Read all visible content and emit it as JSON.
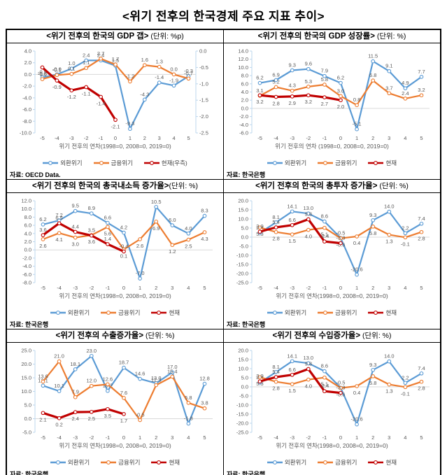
{
  "page_title": "<위기 전후의 한국경제 주요 지표 추이>",
  "colors": {
    "fx_crisis": "#5b9bd5",
    "fin_crisis": "#ed7d31",
    "current": "#c00000",
    "axis": "#bdd7ee",
    "zero_line": "#d9d9d9",
    "label": "#595959"
  },
  "chart_data": [
    {
      "type": "line",
      "title": "<위기 전후의 한국의 GDP 갭>",
      "unit": " (단위: %p)",
      "xlabel": "위기 전후의 연차(1998=0, 2008=0, 2019=0)",
      "source": "자료: OECD Data.",
      "x": [
        "-5",
        "-4",
        "-3",
        "-2",
        "-1",
        "0",
        "1",
        "2",
        "3",
        "4",
        "5"
      ],
      "ylim": [
        -10,
        4
      ],
      "ystep": 2,
      "y2lim": [
        -2.5,
        0
      ],
      "y2step": 0.5,
      "series": [
        {
          "name": "외환위기",
          "color": "#5b9bd5",
          "axis": "left",
          "label_pos": "above",
          "values": [
            -0.5,
            -0.0,
            1.0,
            2.4,
            2.4,
            1.5,
            -9.3,
            -4.3,
            -1.4,
            -1.9,
            -0.3
          ],
          "labels": [
            "-0.5",
            "-0.0",
            "1.0",
            "2.4",
            "2.4",
            "1.5",
            "-9.3",
            "-4.3",
            "-1.4",
            "-1.9",
            "-0.3"
          ]
        },
        {
          "name": "금융위기",
          "color": "#ed7d31",
          "axis": "left",
          "label_pos": "above",
          "values": [
            -0.8,
            -0.1,
            0.1,
            1.1,
            2.7,
            1.7,
            -1.2,
            1.6,
            1.3,
            0.0,
            -0.7
          ],
          "labels": [
            "-0.8",
            "-0.1",
            "0.1",
            "1.1",
            "2.7",
            "1.7",
            "-1.2",
            "1.6",
            "1.3",
            "0.0",
            "-0.7"
          ]
        },
        {
          "name": "현재(우측)",
          "color": "#c00000",
          "axis": "right",
          "label_pos": "below",
          "values": [
            -0.5,
            -0.9,
            -1.2,
            -1.1,
            -1.4,
            -2.1
          ],
          "labels": [
            "-0.5",
            "-0.9",
            "-1.2",
            "-1.1",
            "-1.4",
            "-2.1"
          ]
        }
      ]
    },
    {
      "type": "line",
      "title": "<위기 전후의 한국의 GDP 성장률>",
      "unit": " (단위: %)",
      "xlabel": "위기 전후의 연차 (1998=0, 2008=0, 2019=0)",
      "source": "자료: 한국은행",
      "x": [
        "-5",
        "-4",
        "-3",
        "-2",
        "-1",
        "0",
        "1",
        "2",
        "3",
        "4",
        "5"
      ],
      "ylim": [
        -6,
        14
      ],
      "ystep": 2,
      "series": [
        {
          "name": "외환위기",
          "color": "#5b9bd5",
          "axis": "left",
          "label_pos": "above",
          "values": [
            6.2,
            6.9,
            9.3,
            9.6,
            7.9,
            6.2,
            -5.1,
            11.5,
            9.1,
            4.9,
            7.7
          ],
          "labels": [
            "6.2",
            "6.9",
            "9.3",
            "9.6",
            "7.9",
            "6.2",
            "-5.1",
            "11.5",
            "9.1",
            "4.9",
            "7.7"
          ]
        },
        {
          "name": "금융위기",
          "color": "#ed7d31",
          "axis": "left",
          "label_pos": "above",
          "values": [
            3.1,
            5.2,
            4.3,
            5.3,
            5.8,
            3.0,
            0.8,
            6.8,
            3.7,
            2.4,
            3.2
          ],
          "labels": [
            "3.1",
            "5.2",
            "4.3",
            "5.3",
            "5.8",
            "3.0",
            "0.8",
            "6.8",
            "3.7",
            "2.4",
            "3.2"
          ]
        },
        {
          "name": "현재",
          "color": "#c00000",
          "axis": "left",
          "label_pos": "below",
          "values": [
            3.2,
            2.8,
            2.9,
            3.2,
            2.7,
            2.0
          ],
          "labels": [
            "3.2",
            "2.8",
            "2.9",
            "3.2",
            "2.7",
            "2.0"
          ]
        }
      ]
    },
    {
      "type": "line",
      "title": "<위기 전후의 한국의 총국내소득 증가율>",
      "unit": "(단위: %)",
      "xlabel": "위기 전후의 연차(1998=0, 2008=0, 2019=0)",
      "source": "자료: 한국은행",
      "x": [
        "-5",
        "-4",
        "-3",
        "-2",
        "-1",
        "0",
        "1",
        "2",
        "3",
        "4",
        "5"
      ],
      "ylim": [
        -8,
        12
      ],
      "ystep": 2,
      "series": [
        {
          "name": "외환위기",
          "color": "#5b9bd5",
          "axis": "left",
          "label_pos": "above",
          "values": [
            6.2,
            7.2,
            9.5,
            8.9,
            6.6,
            4.2,
            -7.0,
            10.5,
            6.0,
            4.0,
            8.3
          ],
          "labels": [
            "6.2",
            "7.2",
            "9.5",
            "8.9",
            "6.6",
            "4.2",
            "-7.0",
            "10.5",
            "6.0",
            "4.0",
            "8.3"
          ]
        },
        {
          "name": "금융위기",
          "color": "#ed7d31",
          "axis": "left",
          "label_pos": "below",
          "values": [
            2.6,
            4.1,
            3.0,
            3.6,
            5.6,
            0.1,
            2.6,
            6.9,
            1.2,
            2.5,
            4.3
          ],
          "labels": [
            "2.6",
            "4.1",
            "3.0",
            "3.6",
            "5.6",
            "0.1",
            "2.6",
            "6.9",
            "1.2",
            "2.5",
            "4.3"
          ]
        },
        {
          "name": "현재",
          "color": "#c00000",
          "axis": "left",
          "label_pos": "above",
          "values": [
            3.6,
            6.5,
            4.4,
            3.5,
            1.4,
            -0.4
          ],
          "labels": [
            "3.6",
            "6.5",
            "4.4",
            "3.5",
            "1.4",
            "-0.4"
          ]
        }
      ]
    },
    {
      "type": "line",
      "title": "<위기 전후의 한국의 총투자 증가율>",
      "unit": " (단위: %)",
      "xlabel": "위기 전후의 연차(1998=0, 2008=0, 2019=0)",
      "source": "자료: 한국은행",
      "x": [
        "-5",
        "-4",
        "-3",
        "-2",
        "-1",
        "0",
        "1",
        "2",
        "3",
        "4",
        "5"
      ],
      "ylim": [
        -25,
        20
      ],
      "ystep": 5,
      "series": [
        {
          "name": "외환위기",
          "color": "#5b9bd5",
          "axis": "left",
          "label_pos": "above",
          "values": [
            2.4,
            8.1,
            14.1,
            13.0,
            8.6,
            -0.5,
            -20.6,
            9.3,
            14.0,
            2.2,
            7.4
          ],
          "labels": [
            "2.4",
            "8.1",
            "14.1",
            "13.0",
            "8.6",
            "-0.5",
            "-20.6",
            "9.3",
            "14.0",
            "2.2",
            "7.4"
          ]
        },
        {
          "name": "금융위기",
          "color": "#ed7d31",
          "axis": "left",
          "label_pos": "below",
          "values": [
            5.3,
            2.8,
            1.5,
            4.0,
            5.1,
            -0.6,
            0.4,
            5.8,
            1.3,
            -0.1,
            2.8
          ],
          "labels": [
            "5.3",
            "2.8",
            "1.5",
            "4.0",
            "5.1",
            "-0.6",
            "0.4",
            "5.8",
            "1.3",
            "-0.1",
            "2.8"
          ]
        },
        {
          "name": "현재",
          "color": "#c00000",
          "axis": "left",
          "label_pos": "above",
          "values": [
            3.0,
            5.4,
            6.6,
            9.8,
            -2.4,
            -3.3
          ],
          "labels": [
            "3.0",
            "5.4",
            "6.6",
            "9.8",
            "-2.4",
            "-3.3"
          ]
        }
      ]
    },
    {
      "type": "line",
      "title": "<위기 전후의 수출증가율>",
      "unit": " (단위: %)",
      "xlabel": "위기 전후의 연차(1998=0, 2008=0, 2019=0)",
      "source": "자료: 한국은행",
      "x": [
        "-5",
        "-4",
        "-3",
        "-2",
        "-1",
        "0",
        "1",
        "2",
        "3",
        "4",
        "5"
      ],
      "ylim": [
        -5,
        25
      ],
      "ystep": 5,
      "series": [
        {
          "name": "외환위기",
          "color": "#5b9bd5",
          "axis": "left",
          "label_pos": "above",
          "values": [
            12.1,
            10.1,
            18.1,
            23.0,
            10.2,
            18.7,
            14.6,
            13.0,
            17.0,
            -1.8,
            12.8
          ],
          "labels": [
            "12.1",
            "10.1",
            "18.1",
            "23.0",
            "10.2",
            "18.7",
            "14.6",
            "13.0",
            "17.0",
            "-1.8",
            "12.8"
          ]
        },
        {
          "name": "금융위기",
          "color": "#ed7d31",
          "axis": "left",
          "label_pos": "above",
          "values": [
            13.6,
            21.0,
            7.9,
            12.0,
            12.6,
            7.6,
            -0.5,
            12.3,
            15.4,
            5.8,
            3.8
          ],
          "labels": [
            "13.6",
            "21.0",
            "7.9",
            "12.0",
            "12.6",
            "7.6",
            "-0.5",
            "12.3",
            "15.4",
            "5.8",
            "3.8"
          ]
        },
        {
          "name": "현재",
          "color": "#c00000",
          "axis": "left",
          "label_pos": "below",
          "values": [
            2.1,
            0.2,
            2.4,
            2.5,
            3.5,
            1.7
          ],
          "labels": [
            "2.1",
            "0.2",
            "2.4",
            "2.5",
            "3.5",
            "1.7"
          ]
        }
      ]
    },
    {
      "type": "line",
      "title": "<위기 전후의 수입증가율>",
      "unit": " (단위: %)",
      "xlabel": "위기 전후의 연차(1998=0, 2008=0, 2019=0)",
      "source": "자료: 한국은행",
      "x": [
        "-5",
        "-4",
        "-3",
        "-2",
        "-1",
        "0",
        "1",
        "2",
        "3",
        "4",
        "5"
      ],
      "ylim": [
        -25,
        20
      ],
      "ystep": 5,
      "series": [
        {
          "name": "외환위기",
          "color": "#5b9bd5",
          "axis": "left",
          "label_pos": "above",
          "values": [
            2.4,
            8.1,
            14.1,
            13.0,
            8.6,
            -0.5,
            -20.6,
            9.3,
            14.0,
            2.2,
            7.4
          ],
          "labels": [
            "2.4",
            "8.1",
            "14.1",
            "13.0",
            "8.6",
            "-0.5",
            "-20.6",
            "9.3",
            "14.0",
            "2.2",
            "7.4"
          ]
        },
        {
          "name": "금융위기",
          "color": "#ed7d31",
          "axis": "left",
          "label_pos": "below",
          "values": [
            5.3,
            2.8,
            1.5,
            4.0,
            5.1,
            -0.6,
            0.4,
            5.8,
            1.3,
            -0.1,
            2.8
          ],
          "labels": [
            "5.3",
            "2.8",
            "1.5",
            "4.0",
            "5.1",
            "-0.6",
            "0.4",
            "5.8",
            "1.3",
            "-0.1",
            "2.8"
          ]
        },
        {
          "name": "현재",
          "color": "#c00000",
          "axis": "left",
          "label_pos": "above",
          "values": [
            3.0,
            5.4,
            6.6,
            9.8,
            -2.4,
            -3.3
          ],
          "labels": [
            "3.0",
            "5.4",
            "6.6",
            "9.8",
            "-2.4",
            "-3.3"
          ]
        }
      ]
    }
  ]
}
